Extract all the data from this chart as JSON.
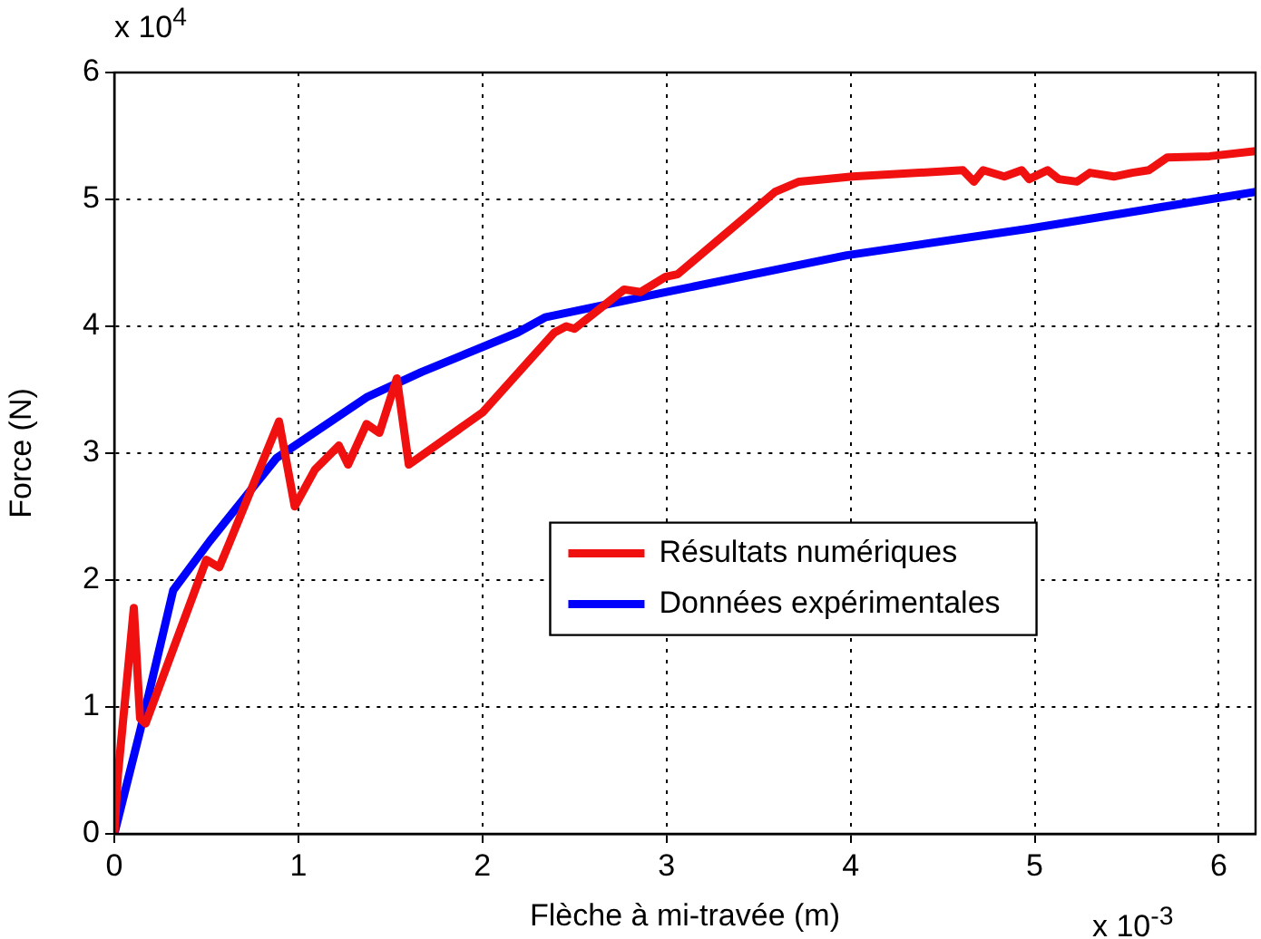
{
  "chart_data": {
    "type": "line",
    "xlabel": "Flèche à mi-travée (m)",
    "ylabel": "Force (N)",
    "annotations": [
      "x 10$^{4}$",
      "x 10$^{-3}$"
    ],
    "xlim": [
      0,
      6.2
    ],
    "ylim": [
      0,
      6
    ],
    "xticks": [
      0,
      1,
      2,
      3,
      4,
      5,
      6
    ],
    "yticks": [
      0,
      1,
      2,
      3,
      4,
      5,
      6
    ],
    "grid": true,
    "legend": "right",
    "marker": "none",
    "line_style": "solid",
    "series": [
      {
        "name": "Résultats numériques",
        "color": "#f01010",
        "x": [
          0,
          0.02,
          0.106,
          0.14,
          0.17,
          0.5,
          0.57,
          0.63,
          0.895,
          0.98,
          1.09,
          1.22,
          1.27,
          1.37,
          1.44,
          1.535,
          1.6,
          2.0,
          2.39,
          2.455,
          2.5,
          2.77,
          2.86,
          2.995,
          3.06,
          3.59,
          3.72,
          4.01,
          4.61,
          4.67,
          4.72,
          4.835,
          4.93,
          4.97,
          5.07,
          5.13,
          5.23,
          5.3,
          5.43,
          5.53,
          5.62,
          5.72,
          5.95,
          6.2
        ],
        "values": [
          0,
          0.47,
          1.78,
          0.91,
          0.87,
          2.16,
          2.1,
          2.31,
          3.25,
          2.58,
          2.87,
          3.06,
          2.91,
          3.23,
          3.16,
          3.59,
          2.91,
          3.32,
          3.95,
          4.0,
          3.98,
          4.29,
          4.27,
          4.39,
          4.41,
          5.06,
          5.14,
          5.18,
          5.23,
          5.14,
          5.23,
          5.18,
          5.23,
          5.16,
          5.23,
          5.16,
          5.14,
          5.21,
          5.18,
          5.21,
          5.23,
          5.33,
          5.34,
          5.38
        ]
      },
      {
        "name": "Données expérimentales",
        "color": "#0000ff",
        "x": [
          0,
          0.14,
          0.32,
          0.52,
          0.88,
          1.37,
          1.67,
          2.19,
          2.34,
          3.0,
          3.98,
          4.97,
          6.2
        ],
        "values": [
          0,
          0.81,
          1.92,
          2.31,
          2.96,
          3.44,
          3.64,
          3.95,
          4.07,
          4.27,
          4.56,
          4.77,
          5.06
        ]
      }
    ]
  }
}
